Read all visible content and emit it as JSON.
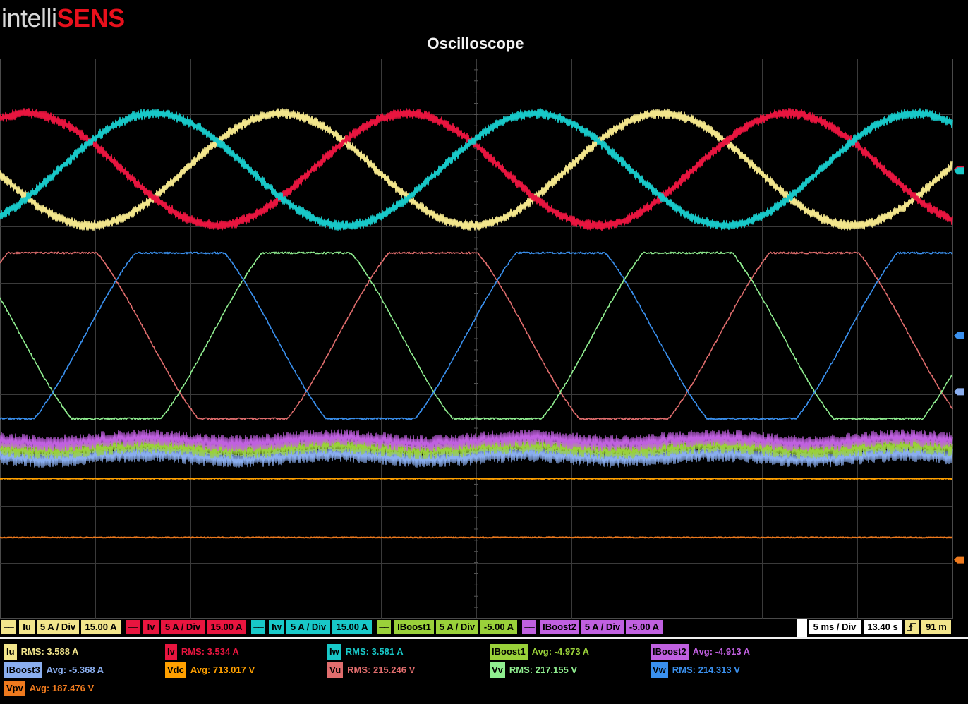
{
  "logo": {
    "part1": "intelli",
    "part2": "SENS"
  },
  "title": "Oscilloscope",
  "chart_data": {
    "type": "line",
    "title": "Oscilloscope",
    "grid": true,
    "timebase": "5 ms / Div",
    "time": "13.40 s",
    "memory": "91 m",
    "series": [
      {
        "name": "Iu",
        "color": "#f2e58c",
        "scale": "5 A / Div",
        "offset": "15.00 A",
        "shape": "sine",
        "amplitude_div": 1.0,
        "center_div": 1.98,
        "period_div": 4.0,
        "phase_div": 1.95,
        "ripple": true
      },
      {
        "name": "Iv",
        "color": "#e8153f",
        "scale": "5 A / Div",
        "offset": "15.00 A",
        "shape": "sine",
        "amplitude_div": 1.0,
        "center_div": 1.98,
        "period_div": 4.0,
        "phase_div": 3.28,
        "ripple": true
      },
      {
        "name": "Iw",
        "color": "#18c8c8",
        "scale": "5 A / Div",
        "offset": "15.00 A",
        "shape": "sine",
        "amplitude_div": 1.0,
        "center_div": 1.98,
        "period_div": 4.0,
        "phase_div": 0.62,
        "ripple": true
      },
      {
        "name": "IBoost1",
        "color": "#9ad13a",
        "scale": "5 A / Div",
        "offset": "-5.00 A",
        "shape": "flat",
        "center_div": 6.95
      },
      {
        "name": "IBoost2",
        "color": "#c060e0",
        "scale": "5 A / Div",
        "offset": "-5.00 A",
        "shape": "flat",
        "center_div": 6.82
      },
      {
        "name": "IBoost3",
        "color": "#8aaeef",
        "shape": "flat",
        "center_div": 7.1
      },
      {
        "name": "Vdc",
        "color": "#ffa000",
        "shape": "flat",
        "center_div": 7.5
      },
      {
        "name": "Vu",
        "color": "#e06d6d",
        "shape": "trap",
        "amplitude_div": 1.48,
        "center_div": 4.95,
        "period_div": 4.0,
        "phase_div": 3.55
      },
      {
        "name": "Vv",
        "color": "#90ee90",
        "shape": "trap",
        "amplitude_div": 1.48,
        "center_div": 4.95,
        "period_div": 4.0,
        "phase_div": 2.22
      },
      {
        "name": "Vw",
        "color": "#3a90ee",
        "shape": "trap",
        "amplitude_div": 1.48,
        "center_div": 4.95,
        "period_div": 4.0,
        "phase_div": 0.89
      },
      {
        "name": "Vpv",
        "color": "#ee7a1e",
        "shape": "flat",
        "center_div": 8.55
      }
    ],
    "markers": [
      {
        "color": "#e8153f",
        "div": 1.98
      },
      {
        "color": "#18c8c8",
        "div": 1.98
      },
      {
        "color": "#3a90ee",
        "div": 4.95
      },
      {
        "color": "#8aaeef",
        "div": 5.95
      },
      {
        "color": "#ee7a1e",
        "div": 8.95
      }
    ]
  },
  "channels": [
    {
      "name": "Iu",
      "color": "#f2e58c",
      "scale": "5 A / Div",
      "offset": "15.00 A"
    },
    {
      "name": "Iv",
      "color": "#e8153f",
      "scale": "5 A / Div",
      "offset": "15.00 A"
    },
    {
      "name": "Iw",
      "color": "#18c8c8",
      "scale": "5 A / Div",
      "offset": "15.00 A"
    },
    {
      "name": "IBoost1",
      "color": "#9ad13a",
      "scale": "5 A / Div",
      "offset": "-5.00 A"
    },
    {
      "name": "IBoost2",
      "color": "#c060e0",
      "scale": "5 A / Div",
      "offset": "-5.00 A"
    }
  ],
  "timebase": {
    "div": "5 ms / Div",
    "time": "13.40 s",
    "trigger_icon": "rising-edge-icon",
    "mem": "91 m"
  },
  "measurements": [
    {
      "name": "Iu",
      "color": "#f2e58c",
      "label": "RMS:",
      "value": "3.588 A"
    },
    {
      "name": "Iv",
      "color": "#e8153f",
      "label": "RMS:",
      "value": "3.534 A"
    },
    {
      "name": "Iw",
      "color": "#18c8c8",
      "label": "RMS:",
      "value": "3.581 A"
    },
    {
      "name": "IBoost1",
      "color": "#9ad13a",
      "label": "Avg:",
      "value": "-4.973 A"
    },
    {
      "name": "IBoost2",
      "color": "#c060e0",
      "label": "Avg:",
      "value": "-4.913 A"
    },
    {
      "name": "IBoost3",
      "color": "#8aaeef",
      "label": "Avg:",
      "value": "-5.368 A"
    },
    {
      "name": "Vdc",
      "color": "#ffa000",
      "label": "Avg:",
      "value": "713.017 V"
    },
    {
      "name": "Vu",
      "color": "#e06d6d",
      "label": "RMS:",
      "value": "215.246 V"
    },
    {
      "name": "Vv",
      "color": "#90ee90",
      "label": "RMS:",
      "value": "217.155 V"
    },
    {
      "name": "Vw",
      "color": "#3a90ee",
      "label": "RMS:",
      "value": "214.313 V"
    },
    {
      "name": "Vpv",
      "color": "#ee7a1e",
      "label": "Avg:",
      "value": "187.476 V"
    }
  ]
}
